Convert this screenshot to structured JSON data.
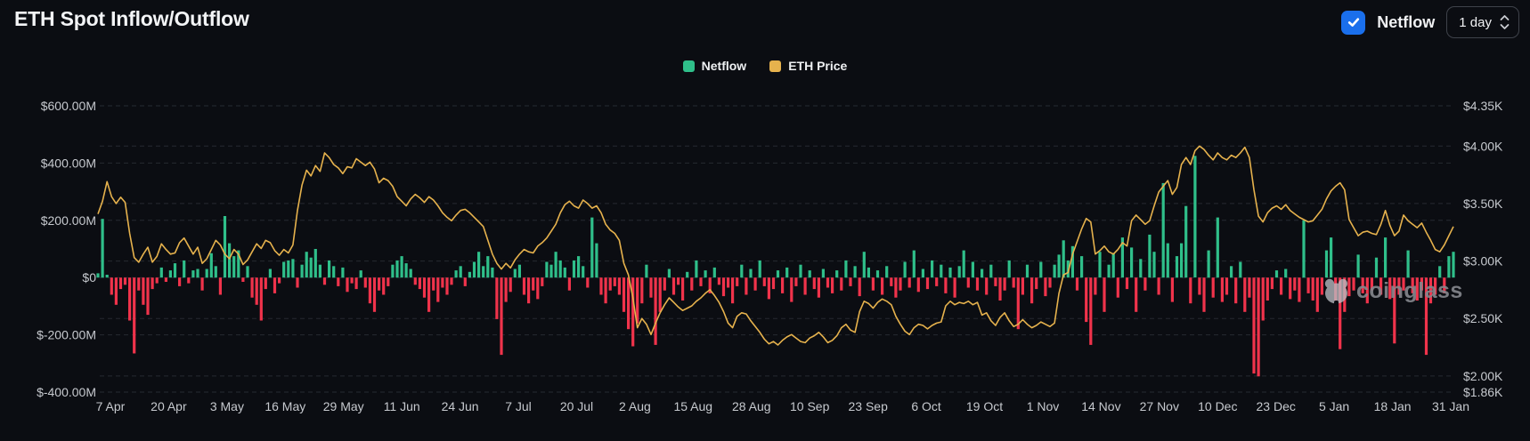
{
  "header": {
    "title": "ETH Spot Inflow/Outflow",
    "netflow_toggle": {
      "label": "Netflow",
      "checked": true
    },
    "interval_select": {
      "value": "1 day"
    }
  },
  "legend": [
    {
      "label": "Netflow",
      "color": "#2fbf8a"
    },
    {
      "label": "ETH Price",
      "color": "#e6b24d"
    }
  ],
  "watermark": {
    "text": "coinglass"
  },
  "colors": {
    "background": "#0b0d12",
    "positive_bar": "#2fbf8a",
    "negative_bar": "#f0334b",
    "price_line": "#e6b24d",
    "grid": "#262a31",
    "axis_text": "#c6c9ce",
    "checkbox_blue": "#1a6fec"
  },
  "chart_data": {
    "type": "bar+line",
    "title": "ETH Spot Inflow/Outflow",
    "x_tick_labels": [
      "7 Apr",
      "20 Apr",
      "3 May",
      "16 May",
      "29 May",
      "11 Jun",
      "24 Jun",
      "7 Jul",
      "20 Jul",
      "2 Aug",
      "15 Aug",
      "28 Aug",
      "10 Sep",
      "23 Sep",
      "6 Oct",
      "19 Oct",
      "1 Nov",
      "14 Nov",
      "27 Nov",
      "10 Dec",
      "23 Dec",
      "5 Jan",
      "18 Jan",
      "31 Jan"
    ],
    "left_axis": {
      "ticks": [
        {
          "label": "$600.00M",
          "value": 600
        },
        {
          "label": "$400.00M",
          "value": 400
        },
        {
          "label": "$200.00M",
          "value": 200
        },
        {
          "label": "$0",
          "value": 0
        },
        {
          "label": "$-200.00M",
          "value": -200
        },
        {
          "label": "$-400.00M",
          "value": -400
        }
      ],
      "range_millions": [
        600,
        -400
      ]
    },
    "right_axis": {
      "ticks": [
        {
          "label": "$4.35K",
          "value": 4350
        },
        {
          "label": "$4.00K",
          "value": 4000
        },
        {
          "label": "$3.50K",
          "value": 3500
        },
        {
          "label": "$3.00K",
          "value": 3000
        },
        {
          "label": "$2.50K",
          "value": 2500
        },
        {
          "label": "$2.00K",
          "value": 2000
        },
        {
          "label": "$1.86K",
          "value": 1860
        }
      ],
      "range_usd": [
        4350,
        1860
      ]
    },
    "grid": "dashed-horizontal",
    "legend_position": "top-center",
    "series": [
      {
        "name": "Netflow",
        "type": "bar",
        "unit": "USD millions",
        "values": [
          15,
          205,
          10,
          -60,
          -95,
          -40,
          -25,
          -150,
          -265,
          -45,
          -95,
          -130,
          -40,
          -20,
          35,
          -15,
          25,
          50,
          -30,
          60,
          -20,
          25,
          30,
          -45,
          30,
          85,
          40,
          -60,
          215,
          120,
          75,
          95,
          -15,
          40,
          -70,
          -95,
          -150,
          -40,
          30,
          -55,
          -20,
          55,
          60,
          65,
          -35,
          45,
          90,
          70,
          100,
          45,
          -25,
          60,
          40,
          -30,
          35,
          -50,
          -20,
          -40,
          25,
          -35,
          -90,
          -120,
          -45,
          -60,
          -30,
          45,
          60,
          75,
          50,
          30,
          -25,
          -40,
          -70,
          -120,
          -45,
          -85,
          -35,
          -60,
          -25,
          25,
          40,
          -30,
          20,
          55,
          90,
          40,
          75,
          35,
          -145,
          -270,
          -85,
          -50,
          30,
          45,
          -60,
          -90,
          -45,
          -75,
          -30,
          55,
          45,
          90,
          60,
          35,
          -45,
          60,
          75,
          40,
          -35,
          210,
          120,
          -60,
          -90,
          -45,
          -30,
          -60,
          -120,
          -180,
          -240,
          -160,
          -90,
          45,
          -70,
          -235,
          -120,
          -45,
          30,
          -60,
          -25,
          -80,
          20,
          -45,
          60,
          -30,
          25,
          -55,
          35,
          -25,
          -65,
          -35,
          -90,
          -30,
          45,
          -60,
          30,
          -45,
          60,
          -30,
          -75,
          -40,
          25,
          -55,
          35,
          -85,
          -30,
          45,
          -60,
          25,
          -40,
          -70,
          30,
          -35,
          -55,
          25,
          -45,
          60,
          -30,
          40,
          -65,
          90,
          35,
          -45,
          25,
          -60,
          40,
          -30,
          -70,
          -45,
          55,
          -35,
          95,
          -50,
          30,
          -40,
          60,
          -30,
          45,
          -55,
          35,
          -70,
          40,
          95,
          -35,
          55,
          -45,
          30,
          -60,
          45,
          -30,
          -80,
          -45,
          60,
          -35,
          -180,
          -60,
          45,
          -90,
          -40,
          55,
          -65,
          -35,
          45,
          80,
          130,
          60,
          110,
          -45,
          75,
          -155,
          -235,
          -60,
          90,
          -120,
          45,
          85,
          -70,
          140,
          -40,
          105,
          -120,
          65,
          -45,
          150,
          90,
          -60,
          330,
          120,
          -85,
          75,
          120,
          250,
          -90,
          425,
          -60,
          -120,
          95,
          -70,
          210,
          -85,
          -60,
          40,
          -90,
          55,
          -120,
          -70,
          -335,
          -345,
          -150,
          -80,
          -40,
          25,
          -60,
          30,
          -75,
          -45,
          -85,
          200,
          -55,
          -80,
          -120,
          -60,
          95,
          140,
          -80,
          -250,
          -120,
          -65,
          -45,
          80,
          -55,
          -90,
          -45,
          70,
          -60,
          140,
          -75,
          -230,
          -60,
          -45,
          95,
          -55,
          -80,
          -45,
          -270,
          -90,
          -60,
          40,
          -55,
          75,
          90
        ]
      },
      {
        "name": "ETH Price",
        "type": "line",
        "unit": "USD",
        "values": [
          3410,
          3520,
          3690,
          3560,
          3500,
          3555,
          3510,
          3240,
          3030,
          2990,
          3060,
          3120,
          2990,
          3040,
          3150,
          3100,
          3060,
          3070,
          3160,
          3200,
          3130,
          3060,
          3120,
          2980,
          3020,
          3100,
          3180,
          3140,
          3060,
          3020,
          3100,
          3060,
          2970,
          3010,
          3080,
          3150,
          3110,
          3180,
          3160,
          3090,
          3050,
          3100,
          3070,
          3140,
          3440,
          3660,
          3790,
          3740,
          3830,
          3780,
          3940,
          3900,
          3840,
          3810,
          3760,
          3820,
          3810,
          3890,
          3860,
          3830,
          3860,
          3800,
          3680,
          3720,
          3700,
          3650,
          3560,
          3520,
          3480,
          3540,
          3580,
          3550,
          3510,
          3560,
          3530,
          3480,
          3420,
          3380,
          3350,
          3400,
          3440,
          3450,
          3420,
          3380,
          3340,
          3300,
          3180,
          3060,
          2980,
          2930,
          2980,
          2940,
          3010,
          3060,
          3100,
          3080,
          3070,
          3130,
          3160,
          3200,
          3260,
          3320,
          3420,
          3490,
          3520,
          3480,
          3460,
          3530,
          3500,
          3460,
          3480,
          3420,
          3320,
          3270,
          3240,
          3180,
          2980,
          2880,
          2680,
          2420,
          2500,
          2450,
          2360,
          2460,
          2550,
          2620,
          2680,
          2640,
          2600,
          2570,
          2590,
          2610,
          2650,
          2680,
          2720,
          2750,
          2700,
          2640,
          2560,
          2460,
          2420,
          2520,
          2550,
          2540,
          2480,
          2430,
          2380,
          2320,
          2280,
          2300,
          2270,
          2310,
          2340,
          2360,
          2330,
          2300,
          2290,
          2330,
          2350,
          2380,
          2340,
          2290,
          2310,
          2350,
          2420,
          2450,
          2400,
          2380,
          2560,
          2650,
          2630,
          2590,
          2640,
          2670,
          2650,
          2620,
          2520,
          2450,
          2390,
          2360,
          2420,
          2450,
          2440,
          2410,
          2440,
          2460,
          2470,
          2610,
          2650,
          2620,
          2640,
          2630,
          2650,
          2620,
          2640,
          2530,
          2550,
          2480,
          2440,
          2510,
          2550,
          2480,
          2430,
          2450,
          2490,
          2450,
          2420,
          2440,
          2470,
          2450,
          2430,
          2460,
          2720,
          2880,
          2900,
          3060,
          3170,
          3280,
          3370,
          3340,
          3060,
          3090,
          3130,
          3080,
          3060,
          3100,
          3160,
          3130,
          3350,
          3400,
          3360,
          3320,
          3350,
          3480,
          3600,
          3650,
          3700,
          3580,
          3640,
          3840,
          3900,
          3840,
          3960,
          4000,
          3970,
          3920,
          3880,
          3940,
          3900,
          3880,
          3920,
          3900,
          3940,
          3990,
          3900,
          3620,
          3390,
          3340,
          3420,
          3460,
          3480,
          3450,
          3490,
          3440,
          3410,
          3380,
          3360,
          3340,
          3350,
          3400,
          3450,
          3540,
          3610,
          3650,
          3680,
          3620,
          3360,
          3290,
          3220,
          3250,
          3260,
          3240,
          3230,
          3320,
          3440,
          3310,
          3220,
          3260,
          3400,
          3350,
          3320,
          3290,
          3330,
          3250,
          3180,
          3100,
          3080,
          3140,
          3220,
          3300
        ]
      }
    ]
  }
}
